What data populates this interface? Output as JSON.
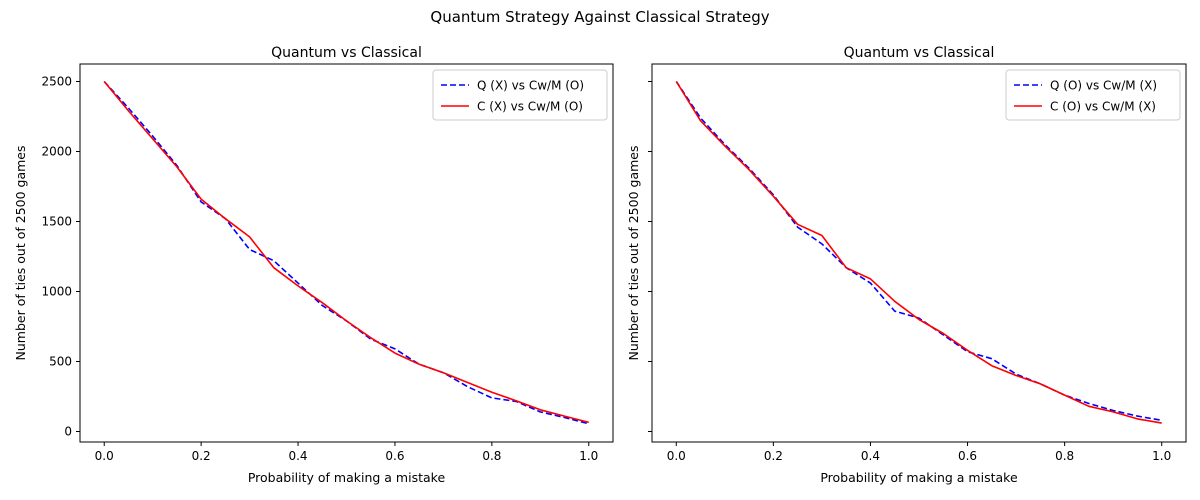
{
  "figure": {
    "suptitle": "Quantum Strategy Against Classical Strategy"
  },
  "chart_data": [
    {
      "type": "line",
      "title": "Quantum vs Classical",
      "xlabel": "Probability of making a mistake",
      "ylabel": "Number of ties out of 2500 games",
      "xlim": [
        -0.05,
        1.05
      ],
      "ylim": [
        -75,
        2625
      ],
      "xticks": [
        0.0,
        0.2,
        0.4,
        0.6,
        0.8,
        1.0
      ],
      "xtick_labels": [
        "0.0",
        "0.2",
        "0.4",
        "0.6",
        "0.8",
        "1.0"
      ],
      "yticks": [
        0,
        500,
        1000,
        1500,
        2000,
        2500
      ],
      "ytick_labels": [
        "0",
        "500",
        "1000",
        "1500",
        "2000",
        "2500"
      ],
      "show_ytick_labels": true,
      "grid": false,
      "legend_position": "top-right",
      "x": [
        0.0,
        0.05,
        0.1,
        0.15,
        0.2,
        0.25,
        0.3,
        0.35,
        0.4,
        0.45,
        0.5,
        0.55,
        0.6,
        0.65,
        0.7,
        0.75,
        0.8,
        0.85,
        0.9,
        0.95,
        1.0
      ],
      "series": [
        {
          "name": "Q (X) vs Cw/M (O)",
          "color": "#0000ff",
          "dash": "dashed",
          "values": [
            2500,
            2310,
            2110,
            1900,
            1640,
            1520,
            1300,
            1220,
            1060,
            900,
            790,
            660,
            590,
            480,
            420,
            320,
            240,
            215,
            140,
            100,
            55
          ]
        },
        {
          "name": "C (X) vs Cw/M (O)",
          "color": "#ff0000",
          "dash": "solid",
          "values": [
            2500,
            2290,
            2090,
            1890,
            1660,
            1520,
            1390,
            1170,
            1040,
            920,
            790,
            670,
            560,
            480,
            420,
            350,
            280,
            220,
            155,
            110,
            65
          ]
        }
      ]
    },
    {
      "type": "line",
      "title": "Quantum vs Classical",
      "xlabel": "Probability of making a mistake",
      "ylabel": "Number of ties out of 2500 games",
      "xlim": [
        -0.05,
        1.05
      ],
      "ylim": [
        -75,
        2625
      ],
      "xticks": [
        0.0,
        0.2,
        0.4,
        0.6,
        0.8,
        1.0
      ],
      "xtick_labels": [
        "0.0",
        "0.2",
        "0.4",
        "0.6",
        "0.8",
        "1.0"
      ],
      "yticks": [
        0,
        500,
        1000,
        1500,
        2000,
        2500
      ],
      "ytick_labels": [
        "0",
        "500",
        "1000",
        "1500",
        "2000",
        "2500"
      ],
      "show_ytick_labels": false,
      "grid": false,
      "legend_position": "top-right",
      "x": [
        0.0,
        0.05,
        0.1,
        0.15,
        0.2,
        0.25,
        0.3,
        0.35,
        0.4,
        0.45,
        0.5,
        0.55,
        0.6,
        0.65,
        0.7,
        0.75,
        0.8,
        0.85,
        0.9,
        0.95,
        1.0
      ],
      "series": [
        {
          "name": "Q (O) vs Cw/M (X)",
          "color": "#0000ff",
          "dash": "dashed",
          "values": [
            2500,
            2240,
            2050,
            1880,
            1690,
            1460,
            1340,
            1170,
            1060,
            860,
            810,
            690,
            570,
            520,
            410,
            340,
            260,
            200,
            150,
            110,
            80
          ]
        },
        {
          "name": "C (O) vs Cw/M (X)",
          "color": "#ff0000",
          "dash": "solid",
          "values": [
            2500,
            2220,
            2040,
            1870,
            1680,
            1480,
            1400,
            1170,
            1090,
            930,
            800,
            700,
            580,
            470,
            400,
            340,
            260,
            180,
            140,
            90,
            60
          ]
        }
      ]
    }
  ]
}
